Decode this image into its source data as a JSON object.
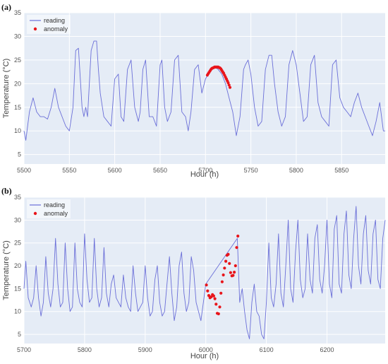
{
  "chart_data": [
    {
      "type": "line",
      "panel_label": "(a)",
      "xlabel": "Hour (h)",
      "ylabel": "Temperature (°C)",
      "xlim": [
        5500,
        5898
      ],
      "ylim": [
        3,
        35
      ],
      "x_ticks": [
        5500,
        5550,
        5600,
        5650,
        5700,
        5750,
        5800,
        5850
      ],
      "y_ticks": [
        5,
        10,
        15,
        20,
        25,
        30,
        35
      ],
      "grid": true,
      "legend_position": "top-left",
      "colors": {
        "reading": "#6b6fd8",
        "anomaly": "#e8151b",
        "plot_bg": "#e5ecf6"
      },
      "series": [
        {
          "name": "reading",
          "mode": "line",
          "x": [
            5500,
            5502,
            5506,
            5510,
            5514,
            5518,
            5522,
            5526,
            5530,
            5534,
            5538,
            5542,
            5546,
            5550,
            5554,
            5557,
            5560,
            5564,
            5566,
            5568,
            5570,
            5574,
            5577,
            5580,
            5582,
            5584,
            5588,
            5592,
            5596,
            5600,
            5604,
            5607,
            5610,
            5614,
            5618,
            5622,
            5626,
            5628,
            5631,
            5634,
            5638,
            5642,
            5646,
            5650,
            5652,
            5655,
            5658,
            5662,
            5666,
            5670,
            5674,
            5678,
            5681,
            5684,
            5688,
            5692,
            5696,
            5700,
            5703,
            5706,
            5710,
            5714,
            5718,
            5722,
            5726,
            5730,
            5734,
            5738,
            5742,
            5744,
            5747,
            5750,
            5754,
            5758,
            5762,
            5766,
            5770,
            5773,
            5776,
            5780,
            5784,
            5788,
            5792,
            5796,
            5800,
            5804,
            5808,
            5812,
            5816,
            5820,
            5824,
            5828,
            5832,
            5836,
            5840,
            5844,
            5848,
            5852,
            5856,
            5860,
            5864,
            5868,
            5872,
            5876,
            5880,
            5884,
            5888,
            5892,
            5896,
            5898
          ],
          "y": [
            10,
            8,
            14,
            17,
            14,
            13,
            13,
            12.5,
            15,
            19,
            15,
            13,
            11,
            10,
            15,
            27,
            27.5,
            15,
            13,
            15,
            13,
            27,
            29,
            29,
            23,
            18,
            13,
            12,
            11,
            21,
            22,
            13,
            12,
            23,
            25,
            15,
            12,
            14,
            23,
            25,
            13,
            13,
            11,
            24,
            25,
            15,
            12,
            14,
            25,
            26,
            14,
            13,
            10,
            14,
            23,
            24,
            18,
            21,
            22,
            23,
            23.5,
            23,
            22,
            20,
            17,
            14,
            9,
            13,
            23,
            24,
            25,
            22,
            15,
            11,
            12,
            23,
            26,
            26,
            20,
            14,
            11,
            13,
            24,
            27,
            24,
            18,
            12,
            13,
            24,
            26,
            16,
            13,
            12,
            11,
            24,
            25,
            17,
            15,
            14,
            13,
            16,
            18,
            15,
            13,
            11,
            9,
            12,
            16,
            10,
            10
          ]
        },
        {
          "name": "anomaly",
          "mode": "markers",
          "x": [
            5702,
            5703,
            5704,
            5705,
            5706,
            5707,
            5708,
            5709,
            5710,
            5711,
            5712,
            5713,
            5714,
            5715,
            5716,
            5717,
            5718,
            5719,
            5720,
            5721,
            5722,
            5723,
            5724,
            5725,
            5726,
            5727
          ],
          "y": [
            21.8,
            22.1,
            22.4,
            22.7,
            23.0,
            23.2,
            23.3,
            23.4,
            23.5,
            23.5,
            23.5,
            23.5,
            23.5,
            23.4,
            23.3,
            23.1,
            22.8,
            22.5,
            22.2,
            21.8,
            21.4,
            21.0,
            20.6,
            20.2,
            19.7,
            19.2
          ]
        }
      ]
    },
    {
      "type": "line",
      "panel_label": "(b)",
      "xlabel": "Hour (h)",
      "ylabel": "Temperature (°C)",
      "xlim": [
        5700,
        6296
      ],
      "ylim": [
        3,
        35
      ],
      "x_ticks": [
        5700,
        5800,
        5900,
        6000,
        6100,
        6200
      ],
      "y_ticks": [
        5,
        10,
        15,
        20,
        25,
        30,
        35
      ],
      "grid": true,
      "legend_position": "top-left",
      "colors": {
        "reading": "#6b6fd8",
        "anomaly": "#e8151b",
        "plot_bg": "#e5ecf6"
      },
      "series": [
        {
          "name": "reading",
          "mode": "line",
          "x": [
            5700,
            5703,
            5707,
            5712,
            5716,
            5720,
            5724,
            5728,
            5732,
            5736,
            5740,
            5744,
            5748,
            5752,
            5756,
            5760,
            5764,
            5768,
            5772,
            5776,
            5780,
            5784,
            5788,
            5792,
            5796,
            5800,
            5804,
            5808,
            5812,
            5816,
            5820,
            5824,
            5828,
            5832,
            5836,
            5840,
            5844,
            5848,
            5852,
            5856,
            5860,
            5864,
            5868,
            5872,
            5876,
            5880,
            5884,
            5888,
            5892,
            5896,
            5900,
            5904,
            5908,
            5912,
            5916,
            5920,
            5924,
            5928,
            5932,
            5936,
            5940,
            5944,
            5948,
            5952,
            5956,
            5960,
            5964,
            5968,
            5972,
            5976,
            5980,
            5984,
            5988,
            5992,
            5996,
            6000,
            6052,
            6056,
            6060,
            6064,
            6068,
            6072,
            6076,
            6080,
            6084,
            6088,
            6092,
            6096,
            6100,
            6104,
            6108,
            6112,
            6116,
            6120,
            6124,
            6128,
            6132,
            6136,
            6140,
            6144,
            6148,
            6152,
            6156,
            6160,
            6164,
            6168,
            6172,
            6176,
            6180,
            6184,
            6188,
            6192,
            6196,
            6200,
            6204,
            6208,
            6212,
            6216,
            6220,
            6224,
            6228,
            6232,
            6236,
            6240,
            6244,
            6248,
            6252,
            6256,
            6260,
            6264,
            6268,
            6272,
            6276,
            6280,
            6284,
            6288,
            6292,
            6296
          ],
          "y": [
            15,
            21,
            13,
            11,
            13,
            20,
            13,
            9,
            12,
            22,
            14,
            11,
            15,
            26,
            16,
            11,
            12,
            25,
            15,
            10,
            11,
            25,
            15,
            12,
            11,
            27,
            17,
            12,
            13,
            26,
            15,
            11,
            13,
            24,
            14,
            11,
            16,
            18,
            13,
            12,
            11,
            18,
            13,
            11,
            10,
            20,
            14,
            10,
            11,
            12,
            20,
            13,
            9,
            10,
            17,
            20,
            12,
            9,
            10,
            16,
            22,
            14,
            8,
            11,
            20,
            23,
            14,
            10,
            12,
            22,
            19,
            12,
            10,
            8,
            12,
            16,
            26,
            12,
            15,
            10,
            6,
            4,
            12,
            16,
            10,
            9,
            5,
            4,
            12,
            25,
            13,
            11,
            16,
            27,
            14,
            11,
            20,
            30,
            15,
            12,
            23,
            30,
            17,
            13,
            15,
            27,
            17,
            14,
            26,
            29,
            17,
            14,
            20,
            30,
            16,
            13,
            28,
            31,
            16,
            14,
            27,
            32,
            18,
            15,
            26,
            33,
            20,
            16,
            27,
            31,
            19,
            16,
            27,
            30,
            17,
            15,
            26,
            30
          ]
        },
        {
          "name": "anomaly",
          "mode": "markers",
          "x": [
            6001,
            6003,
            6005,
            6007,
            6009,
            6011,
            6013,
            6015,
            6017,
            6019,
            6021,
            6023,
            6025,
            6027,
            6029,
            6031,
            6033,
            6035,
            6037,
            6039,
            6041,
            6043,
            6045,
            6047,
            6049,
            6051,
            6053
          ],
          "y": [
            15.8,
            14.5,
            13.5,
            13.0,
            13.2,
            13.7,
            13.4,
            12.8,
            11.6,
            9.6,
            9.5,
            11.0,
            14.0,
            16.5,
            18.0,
            19.5,
            21.0,
            22.3,
            22.5,
            20.5,
            18.5,
            17.8,
            17.9,
            18.6,
            20.0,
            24.0,
            26.5
          ]
        }
      ]
    }
  ]
}
